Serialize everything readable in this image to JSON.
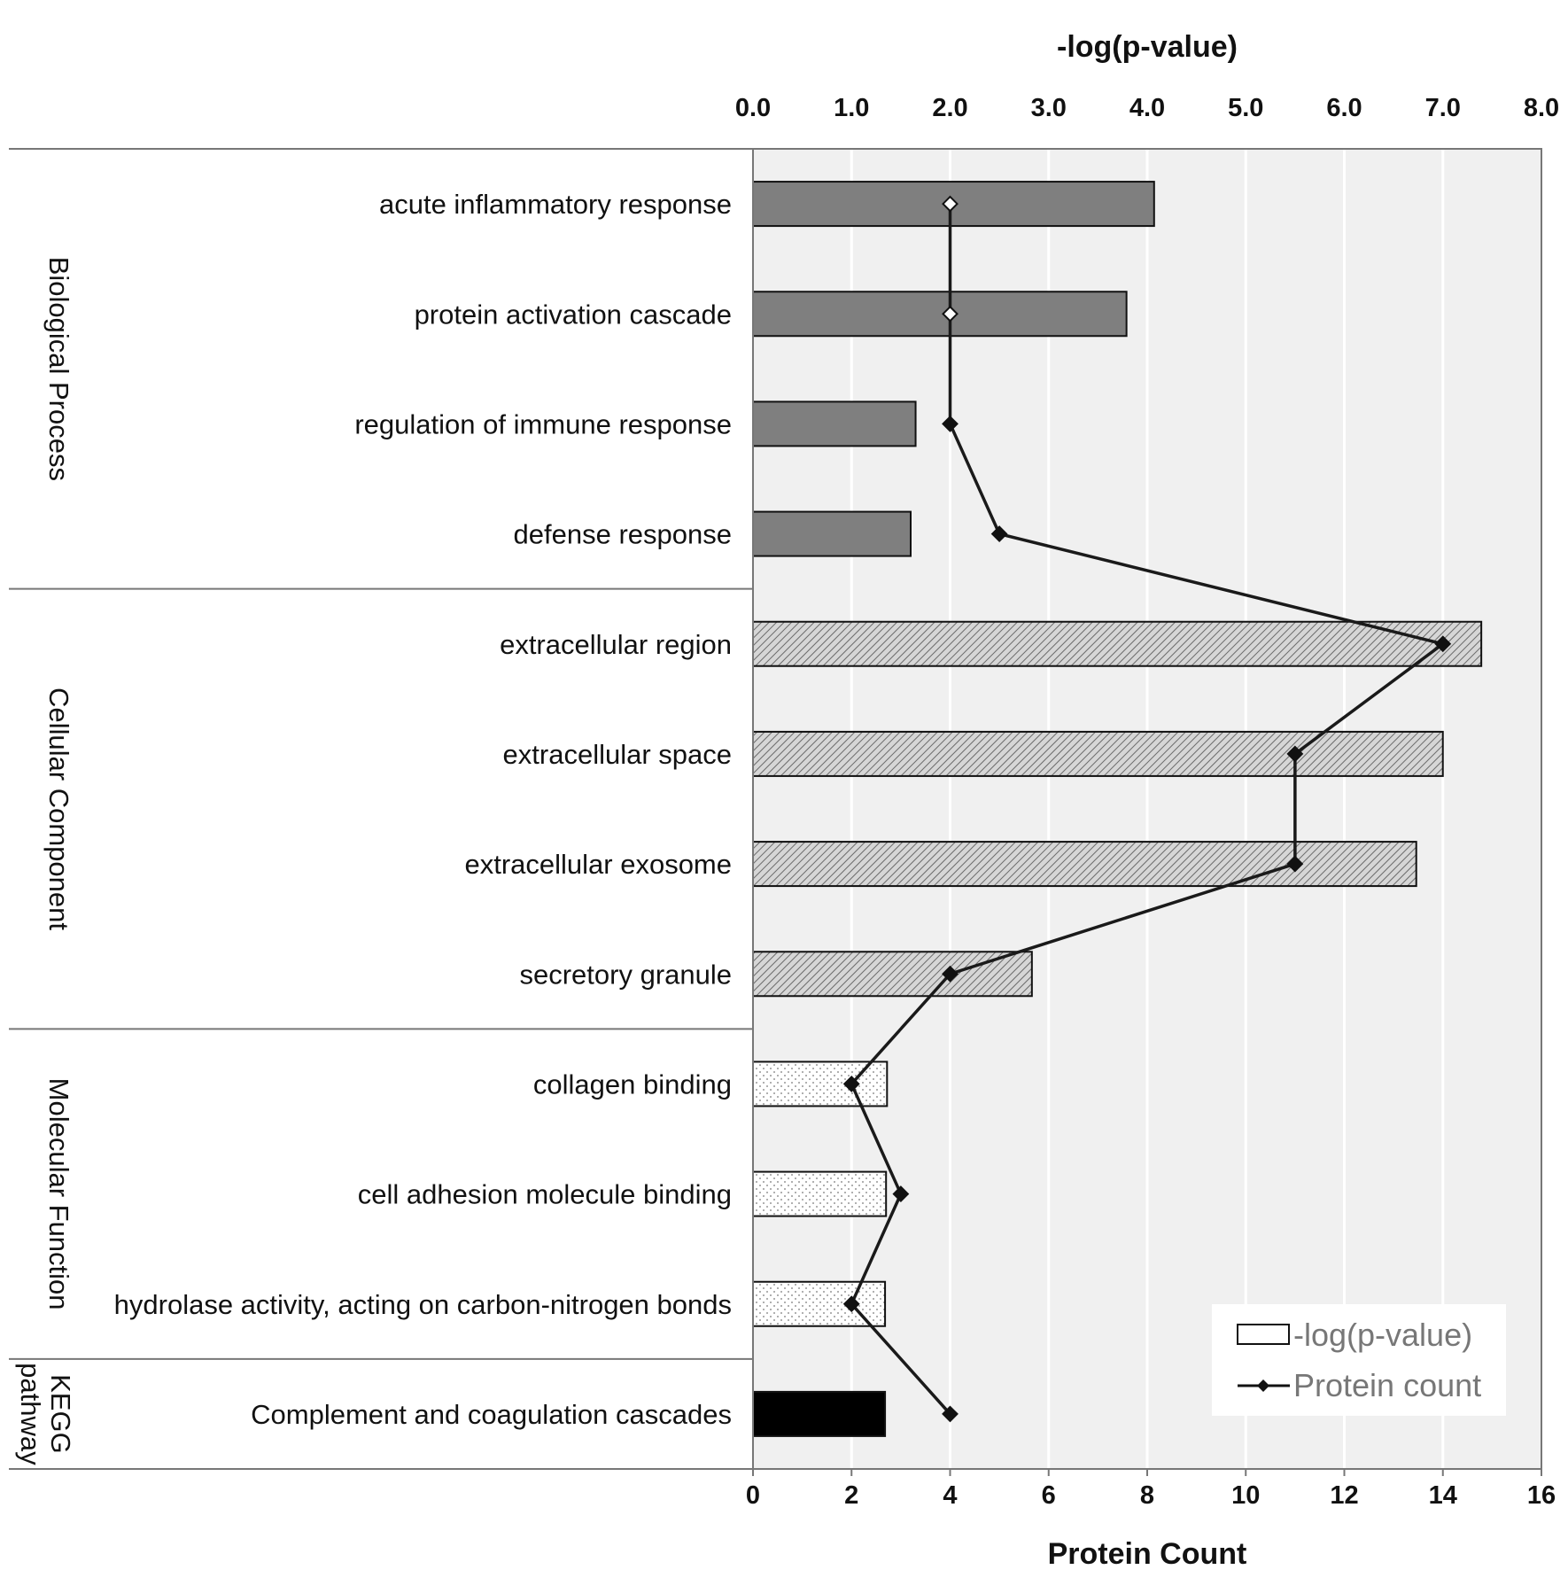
{
  "chart_data": {
    "type": "bar",
    "orientation": "horizontal",
    "top_axis": {
      "title": "-log(p-value)",
      "range": [
        0,
        8
      ],
      "ticks": [
        "0.0",
        "1.0",
        "2.0",
        "3.0",
        "4.0",
        "5.0",
        "6.0",
        "7.0",
        "8.0"
      ]
    },
    "bottom_axis": {
      "title": "Protein Count",
      "range": [
        0,
        16
      ],
      "ticks": [
        "0",
        "2",
        "4",
        "6",
        "8",
        "10",
        "12",
        "14",
        "16"
      ]
    },
    "grid": true,
    "legend_position": "bottom-right",
    "groups": [
      {
        "label": "Biological Process",
        "style": "solid-gray"
      },
      {
        "label": "Cellular Component",
        "style": "hatched"
      },
      {
        "label": "Molecular Function",
        "style": "dotted"
      },
      {
        "label": "KEGG pathway",
        "style": "solid-black"
      }
    ],
    "categories": [
      "acute inflammatory response",
      "protein activation cascade",
      "regulation of immune response",
      "defense response",
      "extracellular region",
      "extracellular space",
      "extracellular exosome",
      "secretory granule",
      "collagen binding",
      "cell adhesion molecule binding",
      "hydrolase activity, acting on carbon-nitrogen bonds",
      "Complement and coagulation cascades"
    ],
    "category_group": [
      0,
      0,
      0,
      0,
      1,
      1,
      1,
      1,
      2,
      2,
      2,
      3
    ],
    "series": [
      {
        "name": "-log(p-value)",
        "type": "bar",
        "axis": "top",
        "values": [
          4.07,
          3.79,
          1.65,
          1.6,
          7.39,
          7.0,
          6.73,
          2.83,
          1.36,
          1.35,
          1.34,
          1.34
        ]
      },
      {
        "name": "Protein count",
        "type": "line",
        "axis": "bottom",
        "values": [
          4,
          4,
          4,
          5,
          14,
          11,
          11,
          4,
          2,
          3,
          2,
          4
        ]
      }
    ]
  }
}
